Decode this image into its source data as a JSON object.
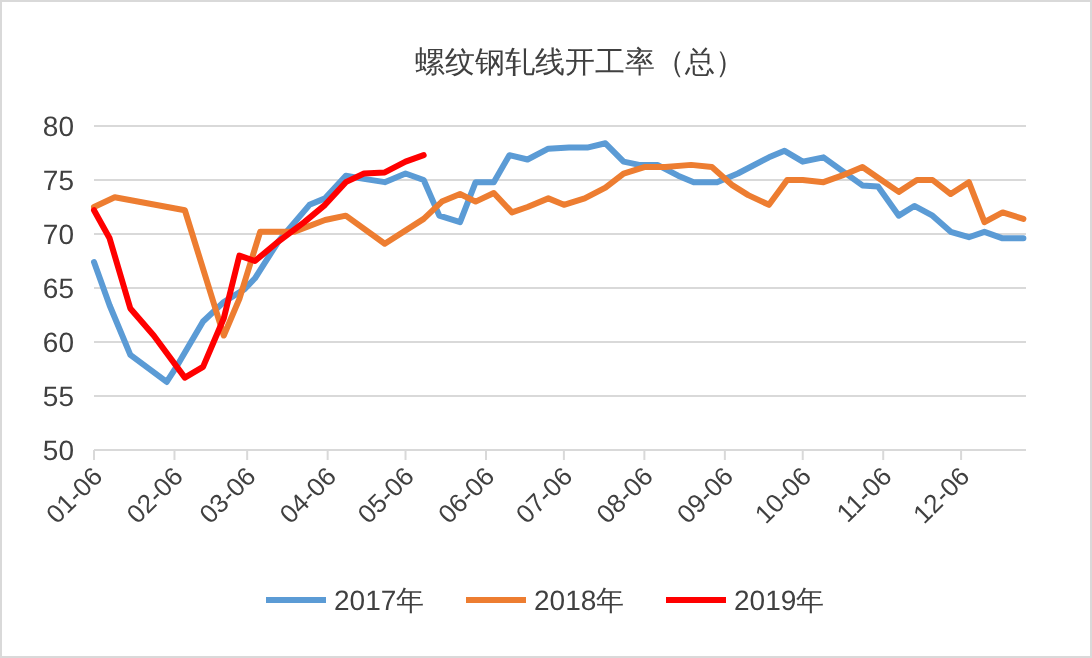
{
  "chart_data": {
    "type": "line",
    "title": "螺纹钢轧线开工率（总）",
    "xlim": [
      "--01-06",
      "--12-31"
    ],
    "xticks": [
      {
        "value": "--01-06",
        "label": "01-06"
      },
      {
        "value": "--02-06",
        "label": "02-06"
      },
      {
        "value": "--03-06",
        "label": "03-06"
      },
      {
        "value": "--04-06",
        "label": "04-06"
      },
      {
        "value": "--05-06",
        "label": "05-06"
      },
      {
        "value": "--06-06",
        "label": "06-06"
      },
      {
        "value": "--07-06",
        "label": "07-06"
      },
      {
        "value": "--08-06",
        "label": "08-06"
      },
      {
        "value": "--09-06",
        "label": "09-06"
      },
      {
        "value": "--10-06",
        "label": "10-06"
      },
      {
        "value": "--11-06",
        "label": "11-06"
      },
      {
        "value": "--12-06",
        "label": "12-06"
      }
    ],
    "ylim": [
      50,
      80
    ],
    "yticks": [
      50,
      55,
      60,
      65,
      70,
      75,
      80
    ],
    "grid": "y",
    "legend": "bottom",
    "marker": "none",
    "line_style": "solid",
    "series": [
      {
        "name": "2017年",
        "color": "#5b9bd5",
        "x": [
          "--01-06",
          "--01-12",
          "--01-20",
          "--02-03",
          "--02-07",
          "--02-17",
          "--02-25",
          "--03-05",
          "--03-09",
          "--03-18",
          "--03-30",
          "--04-05",
          "--04-13",
          "--04-20",
          "--04-28",
          "--05-06",
          "--05-13",
          "--05-19",
          "--05-27",
          "--06-02",
          "--06-09",
          "--06-15",
          "--06-22",
          "--06-30",
          "--07-08",
          "--07-15",
          "--07-22",
          "--07-29",
          "--08-04",
          "--08-11",
          "--08-19",
          "--08-25",
          "--09-03",
          "--09-11",
          "--09-23",
          "--09-29",
          "--10-06",
          "--10-14",
          "--10-22",
          "--10-29",
          "--11-04",
          "--11-12",
          "--11-18",
          "--11-25",
          "--12-02",
          "--12-09",
          "--12-15",
          "--12-22",
          "--12-30"
        ],
        "values": [
          67.4,
          63.4,
          58.8,
          56.3,
          57.8,
          61.9,
          63.7,
          64.9,
          65.9,
          69.3,
          72.7,
          73.3,
          75.4,
          75.1,
          74.8,
          75.6,
          75.0,
          71.7,
          71.1,
          74.8,
          74.8,
          77.3,
          76.9,
          77.9,
          78.0,
          78.0,
          78.4,
          76.7,
          76.4,
          76.4,
          75.4,
          74.8,
          74.8,
          75.6,
          77.1,
          77.7,
          76.7,
          77.1,
          75.7,
          74.5,
          74.4,
          71.7,
          72.6,
          71.7,
          70.2,
          69.7,
          70.2,
          69.6,
          69.6
        ]
      },
      {
        "name": "2018年",
        "color": "#ed7d31",
        "x": [
          "--01-06",
          "--01-14",
          "--02-10",
          "--02-25",
          "--03-03",
          "--03-11",
          "--03-24",
          "--04-05",
          "--04-13",
          "--04-28",
          "--05-13",
          "--05-20",
          "--05-27",
          "--06-02",
          "--06-09",
          "--06-16",
          "--06-22",
          "--06-30",
          "--07-06",
          "--07-14",
          "--07-22",
          "--07-29",
          "--08-06",
          "--08-14",
          "--08-24",
          "--09-01",
          "--09-09",
          "--09-15",
          "--09-23",
          "--09-30",
          "--10-06",
          "--10-14",
          "--10-21",
          "--10-29",
          "--11-04",
          "--11-12",
          "--11-19",
          "--11-25",
          "--12-02",
          "--12-09",
          "--12-15",
          "--12-22",
          "--12-30"
        ],
        "values": [
          72.5,
          73.4,
          72.2,
          60.6,
          64.0,
          70.2,
          70.2,
          71.3,
          71.7,
          69.1,
          71.4,
          73.0,
          73.7,
          73.0,
          73.8,
          72.0,
          72.5,
          73.3,
          72.7,
          73.3,
          74.3,
          75.6,
          76.2,
          76.2,
          76.4,
          76.2,
          74.5,
          73.6,
          72.7,
          75.0,
          75.0,
          74.8,
          75.4,
          76.2,
          75.2,
          73.9,
          75.0,
          75.0,
          73.7,
          74.8,
          71.1,
          72.0,
          71.4
        ]
      },
      {
        "name": "2019年",
        "color": "#ff0000",
        "x": [
          "--01-06",
          "--01-12",
          "--01-20",
          "--01-29",
          "--02-10",
          "--02-17",
          "--02-25",
          "--03-03",
          "--03-09",
          "--03-18",
          "--03-28",
          "--04-05",
          "--04-13",
          "--04-20",
          "--04-28",
          "--05-06",
          "--05-13"
        ],
        "values": [
          72.2,
          69.6,
          63.1,
          60.6,
          56.7,
          57.7,
          62.2,
          68.0,
          67.5,
          69.3,
          71.1,
          72.7,
          74.8,
          75.6,
          75.7,
          76.7,
          77.3
        ]
      }
    ]
  }
}
